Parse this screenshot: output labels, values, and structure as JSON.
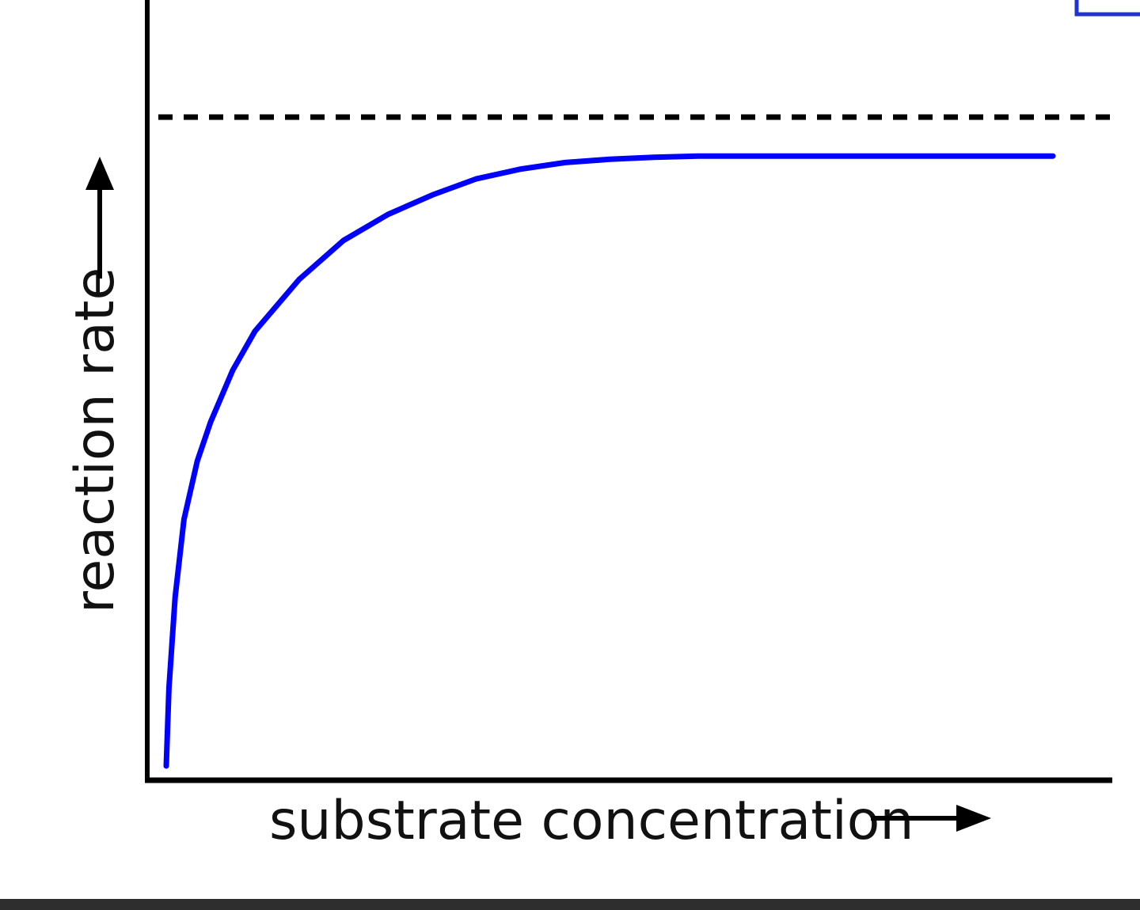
{
  "chart_data": {
    "type": "line",
    "title": "",
    "xlabel": "substrate concentration",
    "ylabel": "reaction rate",
    "x_arrow_icon": "arrow-right-icon",
    "y_arrow_icon": "arrow-up-icon",
    "xlim": [
      0,
      10
    ],
    "ylim": [
      0,
      1.05
    ],
    "grid": false,
    "legend": "none",
    "series": [
      {
        "color": "#0000ff",
        "x": [
          0,
          0.03,
          0.1,
          0.2,
          0.35,
          0.5,
          0.75,
          1,
          1.5,
          2,
          2.5,
          3,
          3.5,
          4,
          4.5,
          5,
          5.5,
          6,
          7,
          8,
          9,
          10
        ],
        "y": [
          0,
          0.12,
          0.26,
          0.38,
          0.47,
          0.53,
          0.61,
          0.67,
          0.75,
          0.81,
          0.85,
          0.88,
          0.905,
          0.92,
          0.93,
          0.935,
          0.938,
          0.94,
          0.94,
          0.94,
          0.94,
          0.94
        ]
      }
    ],
    "reference_lines": [
      {
        "axis": "y",
        "value": 1.0,
        "style": "dashed",
        "color": "#000000"
      }
    ]
  }
}
